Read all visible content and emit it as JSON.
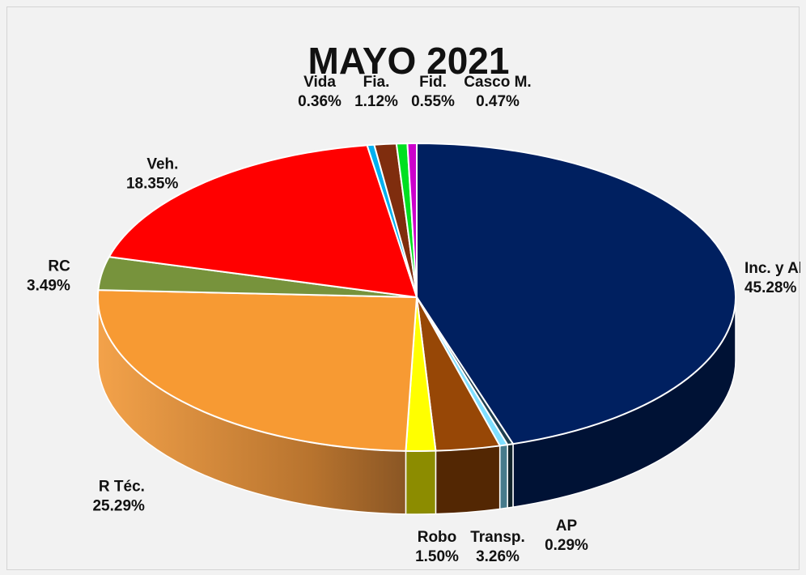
{
  "chart_data": {
    "type": "pie",
    "title": "MAYO 2021",
    "three_d": true,
    "legend": "none",
    "slices": [
      {
        "name": "Inc. y Al.",
        "value": 45.28,
        "label": "45.28%",
        "color": "#002060"
      },
      {
        "name": "AP",
        "value": 0.29,
        "label": "0.29%",
        "color": "#1f3f4f"
      },
      {
        "name": "",
        "value": 0.4,
        "label": "",
        "color": "#7fdfff"
      },
      {
        "name": "Transp.",
        "value": 3.26,
        "label": "3.26%",
        "color": "#974706"
      },
      {
        "name": "Robo",
        "value": 1.5,
        "label": "1.50%",
        "color": "#ffff00"
      },
      {
        "name": "R Téc.",
        "value": 25.29,
        "label": "25.29%",
        "color": "#f79a33"
      },
      {
        "name": "RC",
        "value": 3.49,
        "label": "3.49%",
        "color": "#77933c"
      },
      {
        "name": "Veh.",
        "value": 18.35,
        "label": "18.35%",
        "color": "#ff0000"
      },
      {
        "name": "Vida",
        "value": 0.36,
        "label": "0.36%",
        "color": "#00b0f0"
      },
      {
        "name": "Fia.",
        "value": 1.12,
        "label": "1.12%",
        "color": "#7f2d0e"
      },
      {
        "name": "Fid.",
        "value": 0.55,
        "label": "0.55%",
        "color": "#00e020"
      },
      {
        "name": "Casco M.",
        "value": 0.47,
        "label": "0.47%",
        "color": "#cc00cc"
      }
    ]
  }
}
